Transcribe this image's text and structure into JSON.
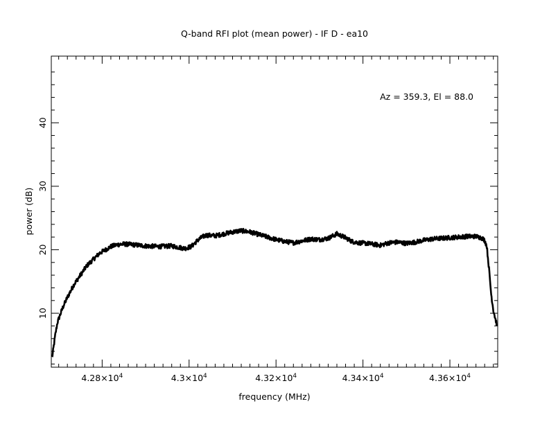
{
  "chart_data": {
    "type": "line",
    "title": "Q-band RFI plot (mean power) - IF D - ea10",
    "annotation": "Az = 359.3, El = 88.0",
    "xlabel": "frequency (MHz)",
    "ylabel": "power (dB)",
    "xlim": [
      42683,
      43710
    ],
    "ylim": [
      1.5,
      50.5
    ],
    "x_ticks": [
      {
        "value": 42800,
        "mantissa": "4.28",
        "exponent": "4"
      },
      {
        "value": 43000,
        "mantissa": "4.3",
        "exponent": "4"
      },
      {
        "value": 43200,
        "mantissa": "4.32",
        "exponent": "4"
      },
      {
        "value": 43400,
        "mantissa": "4.34",
        "exponent": "4"
      },
      {
        "value": 43600,
        "mantissa": "4.36",
        "exponent": "4"
      }
    ],
    "y_ticks": [
      {
        "value": 10,
        "label": "10"
      },
      {
        "value": 20,
        "label": "20"
      },
      {
        "value": 30,
        "label": "30"
      },
      {
        "value": 40,
        "label": "40"
      }
    ],
    "grid": false,
    "color": "#000000",
    "series": [
      {
        "x": [
          42685,
          42688,
          42692,
          42697,
          42702,
          42710,
          42720,
          42735,
          42750,
          42765,
          42780,
          42795,
          42808,
          42820,
          42835,
          42850,
          42870,
          42900,
          42930,
          42960,
          42990,
          43005,
          43020,
          43030,
          43040,
          43060,
          43080,
          43100,
          43120,
          43140,
          43160,
          43180,
          43200,
          43220,
          43240,
          43260,
          43280,
          43300,
          43320,
          43340,
          43360,
          43375,
          43390,
          43410,
          43440,
          43460,
          43480,
          43500,
          43520,
          43540,
          43560,
          43580,
          43600,
          43620,
          43640,
          43660,
          43672,
          43680,
          43685,
          43690,
          43695,
          43700,
          43705,
          43708
        ],
        "y": [
          3.0,
          4.5,
          6.5,
          8.5,
          9.5,
          11.0,
          12.5,
          14.5,
          16.0,
          17.5,
          18.5,
          19.5,
          20.0,
          20.5,
          20.8,
          20.9,
          20.8,
          20.6,
          20.5,
          20.6,
          20.2,
          20.5,
          21.5,
          22.0,
          22.3,
          22.2,
          22.5,
          22.8,
          23.0,
          22.8,
          22.4,
          22.0,
          21.6,
          21.3,
          21.1,
          21.4,
          21.7,
          21.6,
          21.8,
          22.5,
          21.9,
          21.3,
          21.1,
          21.0,
          20.7,
          21.1,
          21.2,
          21.0,
          21.2,
          21.5,
          21.7,
          21.8,
          21.9,
          22.0,
          22.1,
          22.1,
          21.9,
          21.5,
          20.5,
          17.0,
          13.0,
          10.5,
          9.0,
          8.2
        ]
      }
    ]
  }
}
